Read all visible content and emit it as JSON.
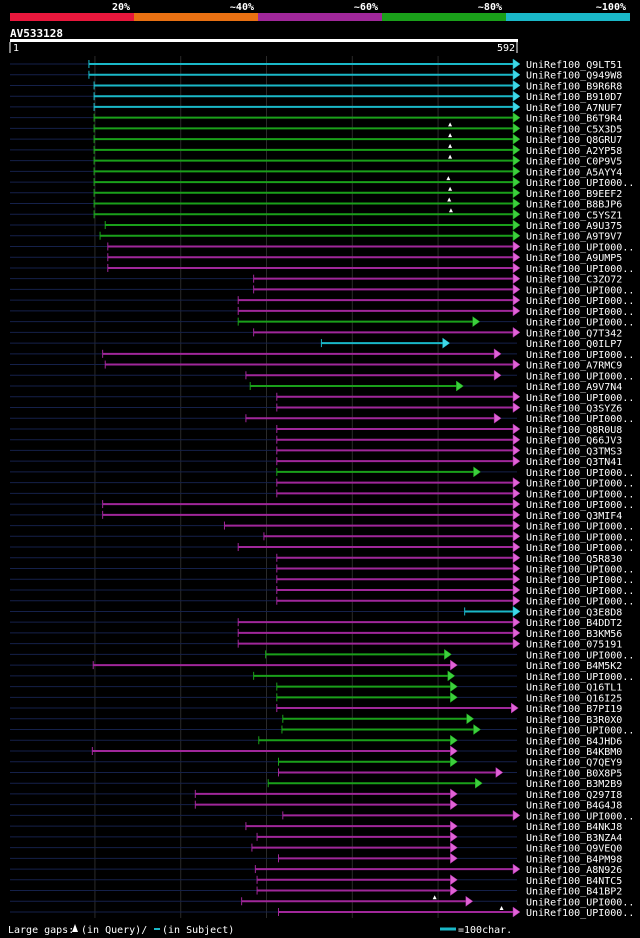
{
  "chart_data": {
    "type": "alignment-overview",
    "query_id": "AV533128",
    "query_start": "1",
    "query_end": "592",
    "query_length": 592,
    "identity_legend": [
      {
        "label": "20%",
        "color": "#e8173c"
      },
      {
        "label": "~40%",
        "color": "#e87012"
      },
      {
        "label": "~60%",
        "color": "#a0279a"
      },
      {
        "label": "~80%",
        "color": "#1aa01a"
      },
      {
        "label": "~100%",
        "color": "#1ab8c8"
      }
    ],
    "footer": {
      "gaps_label": "Large gaps:",
      "query_gap_text": "(in Query)/",
      "subject_gap_text": "(in Subject)",
      "scale_label": "=100char."
    },
    "hits": [
      {
        "name": "UniRef100_Q9LT51",
        "start": 93,
        "end": 592,
        "color": "cyan",
        "tail_end": true
      },
      {
        "name": "UniRef100_Q949W8",
        "start": 93,
        "end": 592,
        "color": "cyan",
        "tail_end": true
      },
      {
        "name": "UniRef100_B9R6R8",
        "start": 99,
        "end": 592,
        "color": "cyan",
        "tail_end": true
      },
      {
        "name": "UniRef100_B910D7",
        "start": 99,
        "end": 592,
        "color": "cyan",
        "tail_end": true
      },
      {
        "name": "UniRef100_A7NUF7",
        "start": 99,
        "end": 592,
        "color": "cyan",
        "tail_end": true
      },
      {
        "name": "UniRef100_B6T9R4",
        "start": 99,
        "end": 592,
        "color": "green",
        "tail_end": true
      },
      {
        "name": "UniRef100_C5X3D5",
        "start": 99,
        "end": 592,
        "color": "green",
        "tail_end": true,
        "gaps": [
          514
        ]
      },
      {
        "name": "UniRef100_Q8GRU7",
        "start": 99,
        "end": 592,
        "color": "green",
        "tail_end": true,
        "gaps": [
          514
        ]
      },
      {
        "name": "UniRef100_A2YP58",
        "start": 99,
        "end": 592,
        "color": "green",
        "tail_end": true,
        "gaps": [
          514
        ]
      },
      {
        "name": "UniRef100_C0P9V5",
        "start": 99,
        "end": 592,
        "color": "green",
        "tail_end": true,
        "gaps": [
          514
        ]
      },
      {
        "name": "UniRef100_A5AYY4",
        "start": 99,
        "end": 592,
        "color": "green",
        "tail_end": true
      },
      {
        "name": "UniRef100_UPI000..",
        "start": 99,
        "end": 592,
        "color": "green",
        "tail_end": true,
        "gaps": [
          512
        ]
      },
      {
        "name": "UniRef100_B9EEF2",
        "start": 99,
        "end": 592,
        "color": "green",
        "tail_end": true,
        "gaps": [
          514
        ]
      },
      {
        "name": "UniRef100_B8BJP6",
        "start": 99,
        "end": 592,
        "color": "green",
        "tail_end": true,
        "gaps": [
          513
        ]
      },
      {
        "name": "UniRef100_C5YSZ1",
        "start": 99,
        "end": 592,
        "color": "green",
        "tail_end": true,
        "gaps": [
          515
        ]
      },
      {
        "name": "UniRef100_A9U375",
        "start": 112,
        "end": 592,
        "color": "green",
        "tail_end": true
      },
      {
        "name": "UniRef100_A9T9V7",
        "start": 106,
        "end": 592,
        "color": "green",
        "tail_end": true
      },
      {
        "name": "UniRef100_UPI000..",
        "start": 115,
        "end": 592,
        "color": "magenta",
        "tail_end": true
      },
      {
        "name": "UniRef100_A9UMP5",
        "start": 115,
        "end": 592,
        "color": "magenta",
        "tail_end": true
      },
      {
        "name": "UniRef100_UPI000..",
        "start": 115,
        "end": 592,
        "color": "magenta",
        "tail_end": true
      },
      {
        "name": "UniRef100_C3ZO72",
        "start": 285,
        "end": 592,
        "color": "magenta",
        "tail_end": true
      },
      {
        "name": "UniRef100_UPI000..",
        "start": 285,
        "end": 592,
        "color": "magenta",
        "tail_end": true
      },
      {
        "name": "UniRef100_UPI000..",
        "start": 267,
        "end": 592,
        "color": "magenta",
        "tail_end": true
      },
      {
        "name": "UniRef100_UPI000..",
        "start": 267,
        "end": 592,
        "color": "magenta",
        "tail_end": true
      },
      {
        "name": "UniRef100_UPI000..",
        "start": 267,
        "end": 545,
        "color": "green",
        "tail_end": false
      },
      {
        "name": "UniRef100_Q7T342",
        "start": 285,
        "end": 592,
        "color": "magenta",
        "tail_end": true
      },
      {
        "name": "UniRef100_Q0ILP7",
        "start": 364,
        "end": 510,
        "color": "cyan",
        "tail_end": false
      },
      {
        "name": "UniRef100_UPI000..",
        "start": 109,
        "end": 570,
        "color": "magenta",
        "tail_end": false
      },
      {
        "name": "UniRef100_A7RMC9",
        "start": 112,
        "end": 592,
        "color": "magenta",
        "tail_end": false
      },
      {
        "name": "UniRef100_UPI000..",
        "start": 276,
        "end": 570,
        "color": "magenta",
        "tail_end": false
      },
      {
        "name": "UniRef100_A9V7N4",
        "start": 281,
        "end": 526,
        "color": "green",
        "tail_end": false
      },
      {
        "name": "UniRef100_UPI000..",
        "start": 312,
        "end": 592,
        "color": "magenta",
        "tail_end": true
      },
      {
        "name": "UniRef100_Q3SYZ6",
        "start": 312,
        "end": 592,
        "color": "magenta",
        "tail_end": true
      },
      {
        "name": "UniRef100_UPI000..",
        "start": 276,
        "end": 570,
        "color": "magenta",
        "tail_end": false
      },
      {
        "name": "UniRef100_Q8R0U8",
        "start": 312,
        "end": 592,
        "color": "magenta",
        "tail_end": true
      },
      {
        "name": "UniRef100_Q66JV3",
        "start": 312,
        "end": 592,
        "color": "magenta",
        "tail_end": true
      },
      {
        "name": "UniRef100_Q3TMS3",
        "start": 312,
        "end": 592,
        "color": "magenta",
        "tail_end": true
      },
      {
        "name": "UniRef100_Q3TN41",
        "start": 312,
        "end": 592,
        "color": "magenta",
        "tail_end": true
      },
      {
        "name": "UniRef100_UPI000..",
        "start": 312,
        "end": 546,
        "color": "green",
        "tail_end": false
      },
      {
        "name": "UniRef100_UPI000..",
        "start": 312,
        "end": 592,
        "color": "magenta",
        "tail_end": true
      },
      {
        "name": "UniRef100_UPI000..",
        "start": 312,
        "end": 592,
        "color": "magenta",
        "tail_end": true
      },
      {
        "name": "UniRef100_UPI000..",
        "start": 109,
        "end": 592,
        "color": "magenta",
        "tail_end": true
      },
      {
        "name": "UniRef100_Q3MIF4",
        "start": 109,
        "end": 592,
        "color": "magenta",
        "tail_end": true
      },
      {
        "name": "UniRef100_UPI000..",
        "start": 251,
        "end": 592,
        "color": "magenta",
        "tail_end": true
      },
      {
        "name": "UniRef100_UPI000..",
        "start": 297,
        "end": 592,
        "color": "magenta",
        "tail_end": true
      },
      {
        "name": "UniRef100_UPI000..",
        "start": 267,
        "end": 592,
        "color": "magenta",
        "tail_end": true
      },
      {
        "name": "UniRef100_Q5R830",
        "start": 312,
        "end": 592,
        "color": "magenta",
        "tail_end": true
      },
      {
        "name": "UniRef100_UPI000..",
        "start": 312,
        "end": 592,
        "color": "magenta",
        "tail_end": true
      },
      {
        "name": "UniRef100_UPI000..",
        "start": 312,
        "end": 592,
        "color": "magenta",
        "tail_end": true
      },
      {
        "name": "UniRef100_UPI000..",
        "start": 312,
        "end": 592,
        "color": "magenta",
        "tail_end": true
      },
      {
        "name": "UniRef100_UPI000..",
        "start": 312,
        "end": 592,
        "color": "magenta",
        "tail_end": true
      },
      {
        "name": "UniRef100_Q3E8D8",
        "start": 531,
        "end": 592,
        "color": "cyan",
        "tail_end": true
      },
      {
        "name": "UniRef100_B4DDT2",
        "start": 267,
        "end": 592,
        "color": "magenta",
        "tail_end": true
      },
      {
        "name": "UniRef100_B3KM56",
        "start": 267,
        "end": 592,
        "color": "magenta",
        "tail_end": true
      },
      {
        "name": "UniRef100_075191",
        "start": 267,
        "end": 592,
        "color": "magenta",
        "tail_end": true
      },
      {
        "name": "UniRef100_UPI000..",
        "start": 299,
        "end": 512,
        "color": "green",
        "tail_end": false
      },
      {
        "name": "UniRef100_B4M5K2",
        "start": 98,
        "end": 519,
        "color": "magenta",
        "tail_end": false
      },
      {
        "name": "UniRef100_UPI000..",
        "start": 285,
        "end": 516,
        "color": "green",
        "tail_end": false
      },
      {
        "name": "UniRef100_Q16TL1",
        "start": 312,
        "end": 519,
        "color": "green",
        "tail_end": false
      },
      {
        "name": "UniRef100_Q16I25",
        "start": 312,
        "end": 519,
        "color": "green",
        "tail_end": false
      },
      {
        "name": "UniRef100_B7PI19",
        "start": 312,
        "end": 590,
        "color": "magenta",
        "tail_end": false
      },
      {
        "name": "UniRef100_B3R0X0",
        "start": 319,
        "end": 538,
        "color": "green",
        "tail_end": false
      },
      {
        "name": "UniRef100_UPI000..",
        "start": 318,
        "end": 546,
        "color": "green",
        "tail_end": false
      },
      {
        "name": "UniRef100_B4JHD6",
        "start": 291,
        "end": 519,
        "color": "green",
        "tail_end": false
      },
      {
        "name": "UniRef100_B4KBM0",
        "start": 97,
        "end": 519,
        "color": "magenta",
        "tail_end": false
      },
      {
        "name": "UniRef100_Q7QEY9",
        "start": 314,
        "end": 519,
        "color": "green",
        "tail_end": false
      },
      {
        "name": "UniRef100_B0X8P5",
        "start": 314,
        "end": 572,
        "color": "magenta",
        "tail_end": false
      },
      {
        "name": "UniRef100_B3M2B9",
        "start": 302,
        "end": 548,
        "color": "green",
        "tail_end": false
      },
      {
        "name": "UniRef100_Q297I8",
        "start": 217,
        "end": 519,
        "color": "magenta",
        "tail_end": false
      },
      {
        "name": "UniRef100_B4G4J8",
        "start": 217,
        "end": 519,
        "color": "magenta",
        "tail_end": false
      },
      {
        "name": "UniRef100_UPI000..",
        "start": 319,
        "end": 592,
        "color": "magenta",
        "tail_end": false
      },
      {
        "name": "UniRef100_B4NKJ8",
        "start": 276,
        "end": 519,
        "color": "magenta",
        "tail_end": false
      },
      {
        "name": "UniRef100_B3NZA4",
        "start": 289,
        "end": 519,
        "color": "magenta",
        "tail_end": false
      },
      {
        "name": "UniRef100_Q9VEQ0",
        "start": 283,
        "end": 519,
        "color": "magenta",
        "tail_end": false
      },
      {
        "name": "UniRef100_B4PM98",
        "start": 314,
        "end": 519,
        "color": "magenta",
        "tail_end": false
      },
      {
        "name": "UniRef100_A8N926",
        "start": 287,
        "end": 592,
        "color": "magenta",
        "tail_end": false
      },
      {
        "name": "UniRef100_B4NTC5",
        "start": 289,
        "end": 519,
        "color": "magenta",
        "tail_end": false
      },
      {
        "name": "UniRef100_B41BP2",
        "start": 289,
        "end": 519,
        "color": "magenta",
        "tail_end": false
      },
      {
        "name": "UniRef100_UPI000..",
        "start": 271,
        "end": 537,
        "color": "magenta",
        "tail_end": false,
        "gaps": [
          496
        ]
      },
      {
        "name": "UniRef100_UPI000..",
        "start": 314,
        "end": 592,
        "color": "magenta",
        "tail_end": false,
        "gaps": [
          574
        ]
      }
    ]
  }
}
